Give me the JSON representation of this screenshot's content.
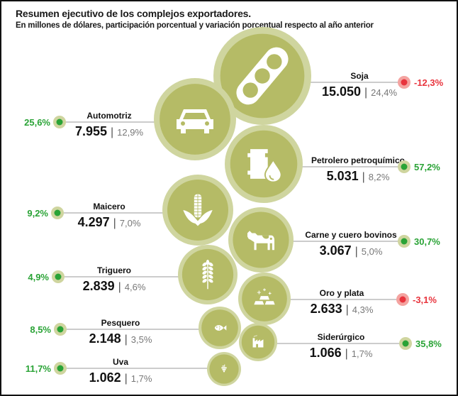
{
  "chart_data": {
    "type": "bubble",
    "title": "Resumen ejecutivo de los complejos exportadores.",
    "subtitle": "En millones de dólares, participación porcentual y variación porcentual respecto al año anterior",
    "colors": {
      "bubble_outer": "#cfd59f",
      "bubble_inner": "#b5bb66",
      "icon": "#ffffff",
      "positive": "#2aa336",
      "negative": "#e8343d",
      "positive_halo": "#cfd59f",
      "negative_halo": "#f4a3a0",
      "leader": "#999999"
    },
    "items": [
      {
        "name": "Soja",
        "value": "15.050",
        "value_num": 15050,
        "share": "24,4%",
        "share_num": 24.4,
        "variation": "-12,3%",
        "variation_num": -12.3,
        "side": "right",
        "icon": "soy-pod-icon"
      },
      {
        "name": "Automotriz",
        "value": "7.955",
        "value_num": 7955,
        "share": "12,9%",
        "share_num": 12.9,
        "variation": "25,6%",
        "variation_num": 25.6,
        "side": "left",
        "icon": "car-icon"
      },
      {
        "name": "Petrolero petroquímico",
        "value": "5.031",
        "value_num": 5031,
        "share": "8,2%",
        "share_num": 8.2,
        "variation": "57,2%",
        "variation_num": 57.2,
        "side": "right",
        "icon": "oil-barrel-icon"
      },
      {
        "name": "Maicero",
        "value": "4.297",
        "value_num": 4297,
        "share": "7,0%",
        "share_num": 7.0,
        "variation": "9,2%",
        "variation_num": 9.2,
        "side": "left",
        "icon": "corn-icon"
      },
      {
        "name": "Carne y cuero bovinos",
        "value": "3.067",
        "value_num": 3067,
        "share": "5,0%",
        "share_num": 5.0,
        "variation": "30,7%",
        "variation_num": 30.7,
        "side": "right",
        "icon": "cow-icon"
      },
      {
        "name": "Triguero",
        "value": "2.839",
        "value_num": 2839,
        "share": "4,6%",
        "share_num": 4.6,
        "variation": "4,9%",
        "variation_num": 4.9,
        "side": "left",
        "icon": "wheat-icon"
      },
      {
        "name": "Oro y plata",
        "value": "2.633",
        "value_num": 2633,
        "share": "4,3%",
        "share_num": 4.3,
        "variation": "-3,1%",
        "variation_num": -3.1,
        "side": "right",
        "icon": "gold-bars-icon"
      },
      {
        "name": "Pesquero",
        "value": "2.148",
        "value_num": 2148,
        "share": "3,5%",
        "share_num": 3.5,
        "variation": "8,5%",
        "variation_num": 8.5,
        "side": "left",
        "icon": "fish-icon"
      },
      {
        "name": "Siderúrgico",
        "value": "1.066",
        "value_num": 1066,
        "share": "1,7%",
        "share_num": 1.7,
        "variation": "35,8%",
        "variation_num": 35.8,
        "side": "right",
        "icon": "factory-icon"
      },
      {
        "name": "Uva",
        "value": "1.062",
        "value_num": 1062,
        "share": "1,7%",
        "share_num": 1.7,
        "variation": "11,7%",
        "variation_num": 11.7,
        "side": "left",
        "icon": "grapes-icon"
      }
    ]
  }
}
